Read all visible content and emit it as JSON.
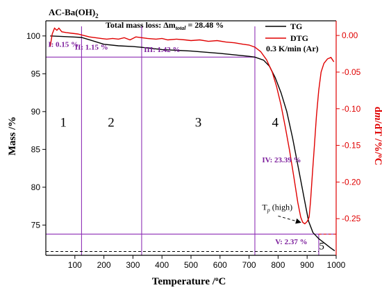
{
  "chart_data": {
    "type": "line",
    "title": "AC-Ba(OH)2",
    "title_main": "AC-Ba(OH)",
    "title_sub": "2",
    "annotation_mass_loss": {
      "prefix": "Total mass loss: Δm",
      "sub": "total",
      "suffix": " = 28.48 %"
    },
    "condition": "0.3 K/min (Ar)",
    "xlabel": "Temperature /°C",
    "ylabel_left": "Mass /%",
    "ylabel_right": "dm/dT /%/°C",
    "xlim": [
      0,
      1000
    ],
    "ylim_left": [
      71,
      102
    ],
    "ylim_right": [
      -0.3,
      0.02
    ],
    "x_ticks": [
      100,
      200,
      300,
      400,
      500,
      600,
      700,
      800,
      900,
      1000
    ],
    "y_left_ticks": [
      75,
      80,
      85,
      90,
      95,
      100
    ],
    "y_right_ticks": [
      0.0,
      -0.05,
      -0.1,
      -0.15,
      -0.2,
      -0.25
    ],
    "y_right_tick_labels": [
      "0.00",
      "-0.05",
      "-0.10",
      "-0.15",
      "-0.20",
      "-0.25"
    ],
    "legend": [
      {
        "name": "TG",
        "color": "#000000"
      },
      {
        "name": "DTG",
        "color": "#e00000"
      }
    ],
    "series": [
      {
        "name": "TG",
        "axis": "left",
        "color": "#000000",
        "points": [
          [
            15,
            100.0
          ],
          [
            50,
            99.95
          ],
          [
            100,
            99.85
          ],
          [
            123,
            99.8
          ],
          [
            150,
            99.5
          ],
          [
            200,
            98.9
          ],
          [
            250,
            98.7
          ],
          [
            300,
            98.6
          ],
          [
            330,
            98.5
          ],
          [
            400,
            98.2
          ],
          [
            500,
            98.0
          ],
          [
            600,
            97.7
          ],
          [
            700,
            97.3
          ],
          [
            720,
            97.2
          ],
          [
            750,
            96.8
          ],
          [
            770,
            96.0
          ],
          [
            790,
            94.5
          ],
          [
            810,
            92.5
          ],
          [
            830,
            90.0
          ],
          [
            850,
            86.5
          ],
          [
            870,
            82.5
          ],
          [
            890,
            78.5
          ],
          [
            905,
            75.5
          ],
          [
            920,
            74.0
          ],
          [
            940,
            73.2
          ],
          [
            960,
            72.6
          ],
          [
            980,
            72.0
          ],
          [
            995,
            71.6
          ]
        ]
      },
      {
        "name": "DTG",
        "axis": "right",
        "color": "#e00000",
        "points": [
          [
            15,
            -0.015
          ],
          [
            22,
            0.002
          ],
          [
            30,
            0.01
          ],
          [
            38,
            0.007
          ],
          [
            45,
            0.01
          ],
          [
            55,
            0.005
          ],
          [
            70,
            0.004
          ],
          [
            90,
            0.003
          ],
          [
            110,
            0.002
          ],
          [
            130,
            0.0
          ],
          [
            150,
            -0.002
          ],
          [
            170,
            -0.003
          ],
          [
            190,
            -0.004
          ],
          [
            210,
            -0.005
          ],
          [
            230,
            -0.004
          ],
          [
            250,
            -0.005
          ],
          [
            270,
            -0.003
          ],
          [
            290,
            -0.006
          ],
          [
            310,
            -0.002
          ],
          [
            330,
            -0.003
          ],
          [
            350,
            -0.004
          ],
          [
            380,
            -0.005
          ],
          [
            400,
            -0.004
          ],
          [
            420,
            -0.006
          ],
          [
            450,
            -0.005
          ],
          [
            480,
            -0.006
          ],
          [
            500,
            -0.007
          ],
          [
            530,
            -0.006
          ],
          [
            560,
            -0.008
          ],
          [
            590,
            -0.007
          ],
          [
            620,
            -0.009
          ],
          [
            650,
            -0.01
          ],
          [
            680,
            -0.012
          ],
          [
            700,
            -0.013
          ],
          [
            720,
            -0.016
          ],
          [
            740,
            -0.022
          ],
          [
            760,
            -0.033
          ],
          [
            780,
            -0.05
          ],
          [
            795,
            -0.07
          ],
          [
            810,
            -0.095
          ],
          [
            825,
            -0.125
          ],
          [
            840,
            -0.158
          ],
          [
            855,
            -0.195
          ],
          [
            868,
            -0.228
          ],
          [
            878,
            -0.248
          ],
          [
            885,
            -0.255
          ],
          [
            892,
            -0.257
          ],
          [
            900,
            -0.254
          ],
          [
            907,
            -0.248
          ],
          [
            912,
            -0.225
          ],
          [
            918,
            -0.19
          ],
          [
            925,
            -0.15
          ],
          [
            932,
            -0.11
          ],
          [
            940,
            -0.075
          ],
          [
            948,
            -0.05
          ],
          [
            958,
            -0.038
          ],
          [
            970,
            -0.032
          ],
          [
            982,
            -0.03
          ],
          [
            992,
            -0.036
          ]
        ]
      }
    ],
    "region_boundaries_x": [
      123,
      330,
      720,
      940
    ],
    "region_labels": [
      {
        "text": "1",
        "x": 60,
        "y": 88
      },
      {
        "text": "2",
        "x": 225,
        "y": 88
      },
      {
        "text": "3",
        "x": 525,
        "y": 88
      },
      {
        "text": "4",
        "x": 790,
        "y": 88
      }
    ],
    "region_label_5": {
      "text": "5",
      "x": 950,
      "y": 71.8
    },
    "mass_levels": {
      "solid_upper": 97.2,
      "solid_lower": 73.8,
      "dashed_final": 71.5
    },
    "step_annotations": [
      {
        "text": "I: 0.15 %",
        "x": 8,
        "y": 98.55
      },
      {
        "text": "II: 1.15 %",
        "x": 100,
        "y": 98.2
      },
      {
        "text": "III: 1.42 %",
        "x": 338,
        "y": 97.85
      },
      {
        "text": "IV: 23.39 %",
        "x": 745,
        "y": 83.3
      },
      {
        "text": "V: 2.37 %",
        "x": 790,
        "y": 72.45
      }
    ],
    "peak_annotation": {
      "main": "T",
      "sub": "p",
      "suffix": " (high)",
      "text_x": 745,
      "text_y": 77.0,
      "arrow_from": [
        800,
        76.2
      ],
      "arrow_to_x": 885,
      "arrow_to_y_right": -0.257
    }
  }
}
